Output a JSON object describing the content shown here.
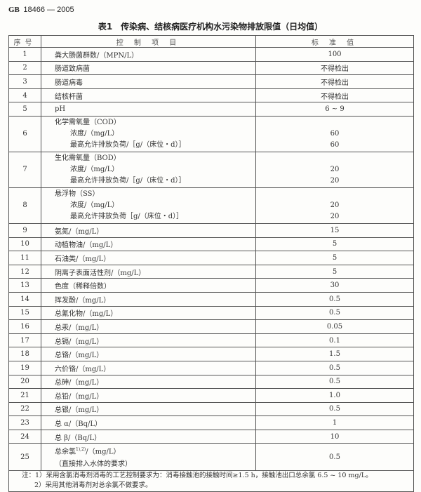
{
  "standard": {
    "prefix": "GB",
    "number": "18466 — 2005"
  },
  "title": "表1　传染病、结核病医疗机构水污染物排放限值（日均值）",
  "headers": {
    "no": "序号",
    "item": "控 制 项 目",
    "value": "标 准 值"
  },
  "rows": [
    {
      "no": "1",
      "item": "粪大肠菌群数/（MPN/L）",
      "value": "100"
    },
    {
      "no": "2",
      "item": "肠道致病菌",
      "value": "不得检出"
    },
    {
      "no": "3",
      "item": "肠道病毒",
      "value": "不得检出"
    },
    {
      "no": "4",
      "item": "结核杆菌",
      "value": "不得检出"
    },
    {
      "no": "5",
      "item": "pH",
      "value": "6 ~ 9"
    }
  ],
  "multi_rows": [
    {
      "no": "6",
      "item": "化学需氧量（COD）",
      "sub1": "浓度/（mg/L）",
      "val1": "60",
      "sub2": "最高允许排放负荷/［g/（床位・d）］",
      "val2": "60"
    },
    {
      "no": "7",
      "item": "生化需氧量（BOD）",
      "sub1": "浓度/（mg/L）",
      "val1": "20",
      "sub2": "最高允许排放负荷/［g/（床位・d）］",
      "val2": "20"
    },
    {
      "no": "8",
      "item": "悬浮物（SS）",
      "sub1": "浓度/（mg/L）",
      "val1": "20",
      "sub2": "最高允许排放负荷［g/（床位・d）］",
      "val2": "20"
    }
  ],
  "rows2": [
    {
      "no": "9",
      "item": "氨氮/（mg/L）",
      "value": "15"
    },
    {
      "no": "10",
      "item": "动植物油/（mg/L）",
      "value": "5"
    },
    {
      "no": "11",
      "item": "石油类/（mg/L）",
      "value": "5"
    },
    {
      "no": "12",
      "item": "阴离子表面活性剂/（mg/L）",
      "value": "5"
    },
    {
      "no": "13",
      "item": "色度（稀释倍数）",
      "value": "30"
    },
    {
      "no": "14",
      "item": "挥发酚/（mg/L）",
      "value": "0.5"
    },
    {
      "no": "15",
      "item": "总氰化物/（mg/L）",
      "value": "0.5"
    },
    {
      "no": "16",
      "item": "总汞/（mg/L）",
      "value": "0.05"
    },
    {
      "no": "17",
      "item": "总镉/（mg/L）",
      "value": "0.1"
    },
    {
      "no": "18",
      "item": "总铬/（mg/L）",
      "value": "1.5"
    },
    {
      "no": "19",
      "item": "六价铬/（mg/L）",
      "value": "0.5"
    },
    {
      "no": "20",
      "item": "总砷/（mg/L）",
      "value": "0.5"
    },
    {
      "no": "21",
      "item": "总铅/（mg/L）",
      "value": "1.0"
    },
    {
      "no": "22",
      "item": "总银/（mg/L）",
      "value": "0.5"
    },
    {
      "no": "23",
      "item": "总 α/（Bq/L）",
      "value": "1"
    },
    {
      "no": "24",
      "item": "总 β/（Bq/L）",
      "value": "10"
    }
  ],
  "last_row": {
    "no": "25",
    "item": "总余氯",
    "sup": "1),2)",
    "unit": "/（mg/L）",
    "sub": "（直接排入水体的要求）",
    "value": "0.5"
  },
  "notes": {
    "n1": "注：1）采用含氯消毒剂消毒的工艺控制要求为：消毒接触池的接触时间≥1.5 h，接触池出口总余氯 6.5 ~ 10 mg/L。",
    "n2": "2）采用其他消毒剂对总余氯不做要求。"
  }
}
